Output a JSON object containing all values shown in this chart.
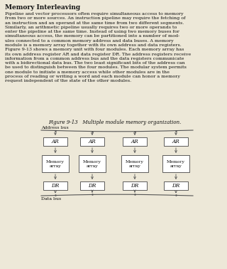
{
  "title": "Memory Interleaving",
  "body_text": "Pipeline and vector processors often require simultaneous access to memory\nfrom two or more sources. An instruction pipeline may require the fetching of\nan instruction and an operand at the same time from two different segments.\nSimilarly, an arithmetic pipeline usually requires two or more operands to\nenter the pipeline at the same time. Instead of using two memory buses for\nsimultaneous access, the memory can be partitioned into a number of mod-\nules connected to a common memory address and data buses. A memory\nmodule is a memory array together with its own address and data registers.\nFigure 9-13 shows a memory unit with four modules. Each memory array has\nits own address register AR and data register DR. The address registers receive\ninformation from a common address bus and the data registers communicate\nwith a bidirectional data bus. The two least significant bits of the address can\nbe used to distinguish between the four modules. The modular system permits\none module to initiate a memory access while other modules are in the\nprocess of reading or writing a word and each module can honor a memory\nrequest independent of the state of the other modules.",
  "figure_caption": "Figure 9-13   Multiple module memory organization.",
  "address_bus_label": "Address bus",
  "data_bus_label": "Data bus",
  "ar_label": "AR",
  "dr_label": "DR",
  "memory_label_line1": "Memory",
  "memory_label_line2": "array",
  "bg_color": "#ede8d8",
  "box_color": "#ffffff",
  "box_edge_color": "#444444",
  "text_color": "#111111",
  "bus_color": "#555555",
  "fig_width": 3.2,
  "fig_height": 3.78,
  "dpi": 100
}
